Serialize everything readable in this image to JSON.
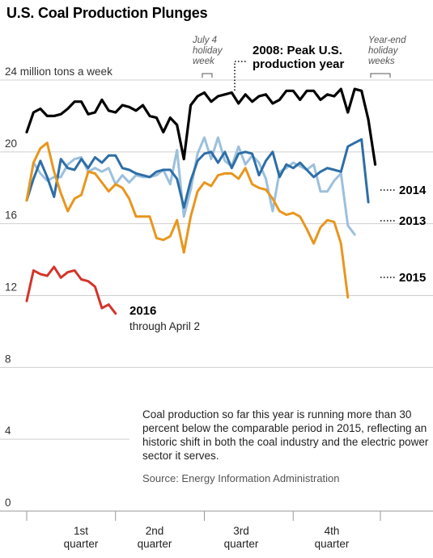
{
  "title": "U.S. Coal Production Plunges",
  "annotations": {
    "july4": "July 4 holiday week",
    "peak": "2008: Peak U.S. production year",
    "yearend": "Year-end holiday weeks"
  },
  "note": {
    "text": "Coal production so far this year is running more than 30 percent below the comparable period in 2015, reflecting an historic shift in both the coal industry and the electric power sector it serves.",
    "source": "Source: Energy Information Administration"
  },
  "label_2016_sub": "through April 2",
  "chart_data": {
    "type": "line",
    "title": "U.S. Coal Production Plunges",
    "ylabel": "24 million tons a week",
    "ylim": [
      0,
      24
    ],
    "yticks": [
      0,
      4,
      8,
      12,
      16,
      20,
      24
    ],
    "ytick_labels": [
      "0",
      "4",
      "8",
      "12",
      "16",
      "20",
      "24 million tons a week"
    ],
    "xlim": [
      1,
      53
    ],
    "quarters": [
      "1st quarter",
      "2nd quarter",
      "3rd quarter",
      "4th quarter"
    ],
    "grid": true,
    "series": [
      {
        "name": "2008",
        "label": "2008: Peak U.S. production year",
        "color": "#000000",
        "values": [
          21.1,
          22.2,
          22.4,
          22.0,
          22.0,
          22.1,
          22.4,
          22.8,
          22.8,
          22.1,
          22.2,
          22.9,
          22.3,
          22.2,
          22.6,
          22.5,
          22.3,
          22.6,
          22.0,
          21.9,
          21.1,
          21.9,
          21.5,
          19.6,
          22.6,
          23.1,
          23.3,
          22.8,
          23.1,
          23.2,
          23.3,
          22.7,
          23.2,
          22.8,
          23.1,
          23.2,
          22.7,
          22.9,
          23.4,
          23.4,
          22.9,
          23.4,
          23.4,
          22.9,
          23.2,
          23.1,
          23.5,
          22.2,
          23.5,
          23.4,
          21.8,
          19.3
        ]
      },
      {
        "name": "2013",
        "label": "2013",
        "color": "#9cc0dc",
        "values": [
          17.3,
          19.4,
          18.8,
          18.4,
          18.6,
          18.6,
          19.3,
          19.6,
          19.7,
          18.9,
          19.1,
          18.9,
          19.1,
          18.2,
          18.7,
          18.3,
          18.7,
          18.6,
          18.6,
          18.7,
          19.0,
          18.2,
          20.1,
          16.4,
          17.9,
          19.9,
          20.8,
          19.6,
          20.8,
          19.5,
          19.2,
          20.3,
          19.3,
          19.8,
          19.4,
          18.5,
          16.7,
          18.9,
          19.1,
          19.4,
          19.2,
          19.0,
          19.3,
          17.8,
          17.8,
          18.4,
          18.8,
          15.9,
          15.4
        ]
      },
      {
        "name": "2014",
        "label": "2014",
        "color": "#2e6ea6",
        "values": [
          17.3,
          18.5,
          19.5,
          18.6,
          17.5,
          19.6,
          19.1,
          19.0,
          19.6,
          19.1,
          19.7,
          19.4,
          19.8,
          19.8,
          19.1,
          19.0,
          18.8,
          18.7,
          18.6,
          18.9,
          19.0,
          19.0,
          18.5,
          16.9,
          18.4,
          19.5,
          19.9,
          20.0,
          19.4,
          20.0,
          19.1,
          19.9,
          20.0,
          19.9,
          18.7,
          19.5,
          20.0,
          18.6,
          19.3,
          19.1,
          19.4,
          19.0,
          18.6,
          18.9,
          19.1,
          19.0,
          18.9,
          20.3,
          20.5,
          20.7,
          17.2
        ]
      },
      {
        "name": "2015",
        "label": "2015",
        "color": "#e8961e",
        "values": [
          17.3,
          19.4,
          20.2,
          20.5,
          18.9,
          17.7,
          16.7,
          17.4,
          17.6,
          18.9,
          18.8,
          18.3,
          17.8,
          18.2,
          18.0,
          17.4,
          16.4,
          16.4,
          16.4,
          15.2,
          15.1,
          15.3,
          16.2,
          14.4,
          16.4,
          17.8,
          18.3,
          18.1,
          18.7,
          18.8,
          18.8,
          18.5,
          19.1,
          18.2,
          18.0,
          17.9,
          17.4,
          16.7,
          16.5,
          16.6,
          16.4,
          15.7,
          14.9,
          15.8,
          16.2,
          16.1,
          14.9,
          11.9
        ]
      },
      {
        "name": "2016",
        "label": "2016",
        "sublabel": "through April 2",
        "color": "#d5342a",
        "values": [
          11.7,
          13.4,
          13.2,
          13.1,
          13.6,
          13.0,
          13.3,
          13.4,
          12.9,
          12.8,
          12.5,
          11.3,
          11.5,
          11.0
        ]
      }
    ]
  }
}
